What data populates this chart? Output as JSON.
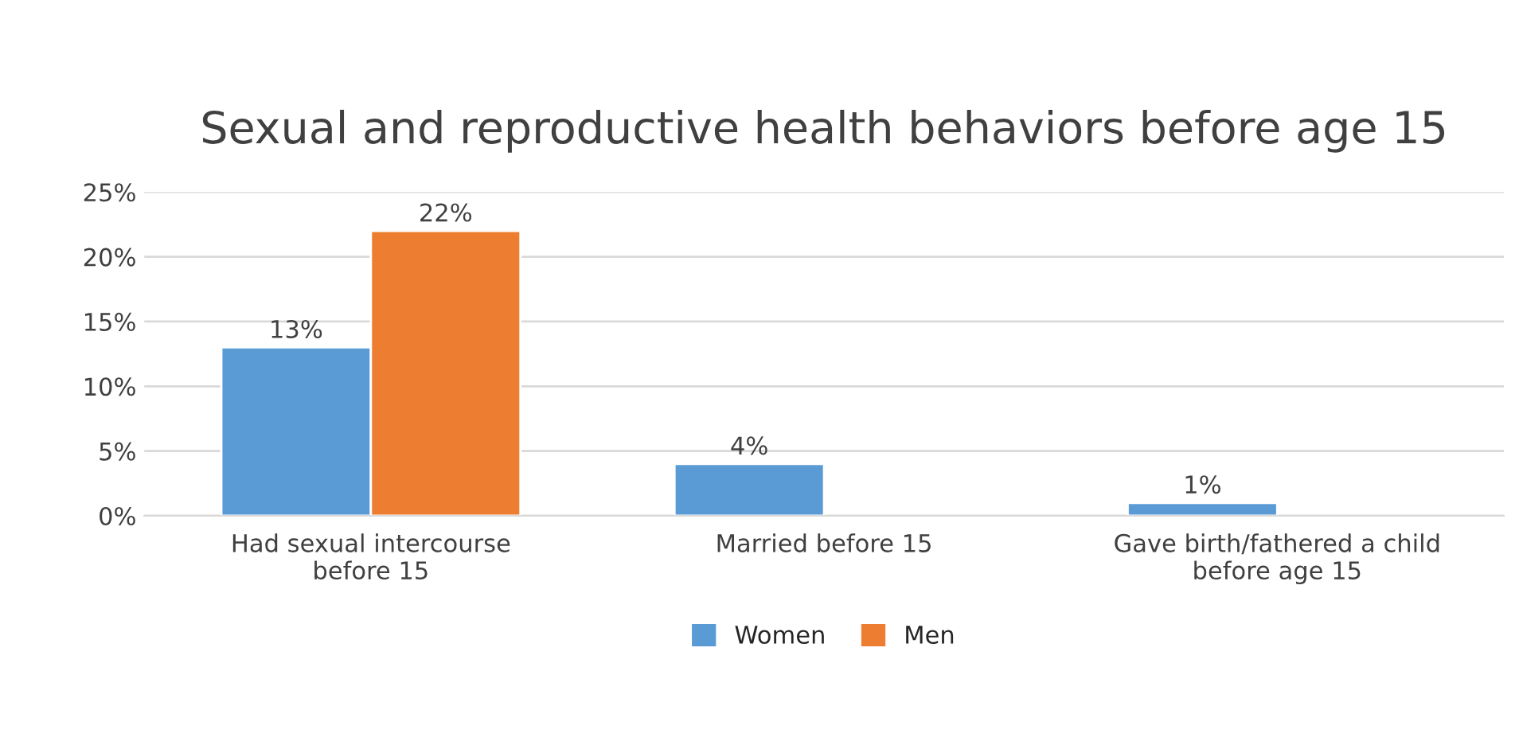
{
  "chart_data": {
    "type": "bar",
    "title": "Sexual and reproductive health behaviors before age 15",
    "categories": [
      "Had sexual intercourse\nbefore 15",
      "Married before 15",
      "Gave birth/fathered a child\nbefore age 15"
    ],
    "series": [
      {
        "name": "Women",
        "color": "#5b9bd5",
        "values": [
          13,
          4,
          1
        ],
        "value_labels": [
          "13%",
          "4%",
          "1%"
        ]
      },
      {
        "name": "Men",
        "color": "#ed7d31",
        "values": [
          22,
          null,
          null
        ],
        "value_labels": [
          "22%",
          null,
          null
        ]
      }
    ],
    "ylim": [
      0,
      25
    ],
    "yticks": [
      {
        "value": 0,
        "label": "0%"
      },
      {
        "value": 5,
        "label": "5%"
      },
      {
        "value": 10,
        "label": "10%"
      },
      {
        "value": 15,
        "label": "15%"
      },
      {
        "value": 20,
        "label": "20%"
      },
      {
        "value": 25,
        "label": "25%"
      }
    ],
    "grid": "y",
    "legend": "bottom"
  }
}
